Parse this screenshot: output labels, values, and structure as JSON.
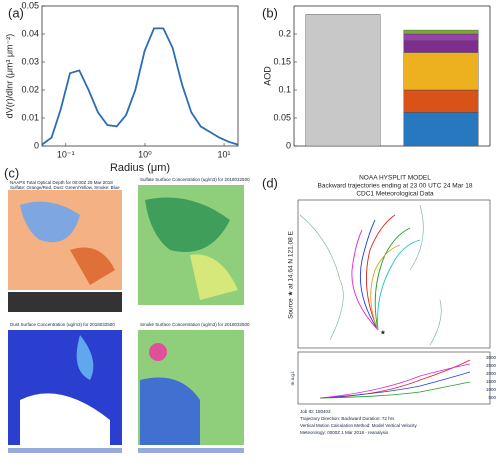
{
  "chart_data": [
    {
      "type": "line",
      "label": "(a)",
      "xlabel": "Radius (μm)",
      "ylabel": "dV(r)/dlnr (μm³ μm⁻²)",
      "log_x": true,
      "color": "#2a6db5",
      "x": [
        0.05,
        0.066,
        0.086,
        0.113,
        0.148,
        0.194,
        0.255,
        0.335,
        0.439,
        0.576,
        0.756,
        0.992,
        1.302,
        1.708,
        2.241,
        2.94,
        3.857,
        5.06,
        6.64,
        8.71,
        11.43,
        15
      ],
      "values": [
        0.0005,
        0.003,
        0.013,
        0.026,
        0.027,
        0.02,
        0.012,
        0.0075,
        0.007,
        0.011,
        0.02,
        0.034,
        0.042,
        0.042,
        0.035,
        0.022,
        0.012,
        0.007,
        0.005,
        0.003,
        0.0015,
        0.0005
      ],
      "xlim": [
        0.05,
        15
      ],
      "xticks": [
        {
          "value": 0.1,
          "label": "10⁻¹"
        },
        {
          "value": 1,
          "label": "10⁰"
        },
        {
          "value": 10,
          "label": "10¹"
        }
      ],
      "ylim": [
        0,
        0.05
      ],
      "yticks": [
        0,
        0.01,
        0.02,
        0.03,
        0.04,
        0.05
      ]
    },
    {
      "type": "bar",
      "label": "(b)",
      "ylabel": "AOD",
      "stacked": true,
      "categories": [
        null,
        null
      ],
      "series": [
        {
          "color": "#c8c8c8",
          "values": [
            0.235,
            null
          ]
        },
        {
          "color": "#2878c0",
          "values": [
            null,
            0.06
          ]
        },
        {
          "color": "#d95319",
          "values": [
            null,
            0.04
          ]
        },
        {
          "color": "#edb120",
          "values": [
            null,
            0.067
          ]
        },
        {
          "color": "#7e2f8e",
          "values": [
            null,
            0.021
          ]
        },
        {
          "color": "#9a3fae",
          "values": [
            null,
            0.012
          ]
        },
        {
          "color": "#77ac30",
          "values": [
            null,
            0.007
          ]
        }
      ],
      "ylim": [
        0,
        0.25
      ],
      "yticks": [
        0,
        0.05,
        0.1,
        0.15,
        0.2
      ]
    }
  ],
  "panel_c": {
    "label": "(c)",
    "titles": [
      "NAAPS Total Optical Depth for 00:00Z 25 Mar 2018",
      "Sulfate: Orange/Red, Dust: Green/Yellow, Smoke: Blue",
      "Sulfate Surface Concentration (ug/m3) for 2018032500",
      "Dust Surface Concentration (ug/m3) for 2018032500",
      "Smoke Surface Concentration (ug/m3) for 2018032500"
    ]
  },
  "panel_d": {
    "label": "(d)",
    "title": [
      "NOAA HYSPLIT MODEL",
      "Backward trajectories ending at 23 00 UTC 24 Mar 18",
      "CDC1 Meteorological Data"
    ],
    "source": "Source ★ at 14.64 N 121.08 E",
    "agl": "m a.g.l.",
    "heights": [
      "3000",
      "2500",
      "2000",
      "1500",
      "1000",
      "500"
    ],
    "footer": [
      "Job ID: 180403",
      "Trajectory Direction: Backward   Duration: 72 hrs",
      "Vertical Motion Calculation Method: Model Vertical Velocity",
      "Meteorology: 0000Z 1 Mar 2018 - reanalysis"
    ]
  }
}
